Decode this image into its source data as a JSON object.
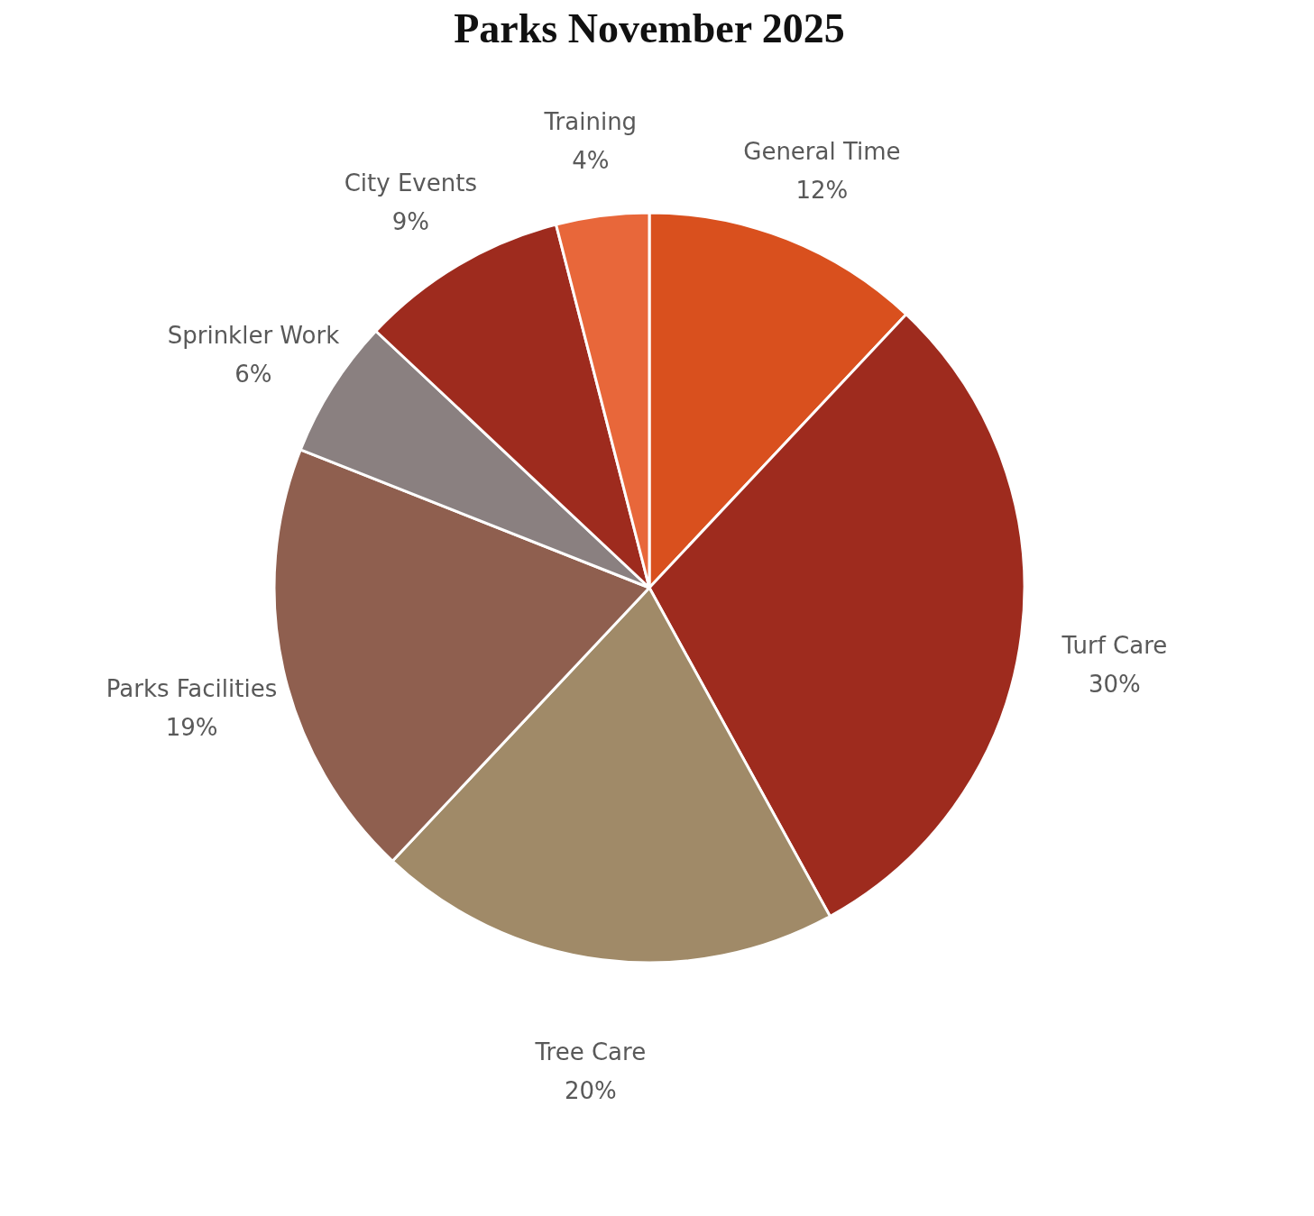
{
  "chart_data": {
    "type": "pie",
    "title": "Parks November 2025",
    "categories": [
      "General Time",
      "Turf Care",
      "Tree Care",
      "Parks Facilities",
      "Sprinkler Work",
      "City Events",
      "Training"
    ],
    "values": [
      12,
      30,
      20,
      19,
      6,
      9,
      4
    ],
    "colors": [
      "#d9501e",
      "#9e2b1e",
      "#a08a68",
      "#8f5f4f",
      "#8a8080",
      "#9e2b1e",
      "#e8673a"
    ],
    "value_labels": [
      "12%",
      "30%",
      "20%",
      "19%",
      "6%",
      "9%",
      "4%"
    ],
    "legend": false
  }
}
